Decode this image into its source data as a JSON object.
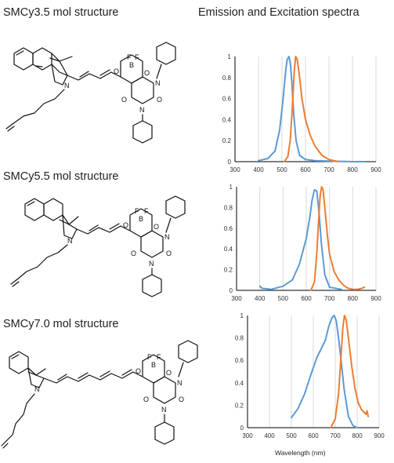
{
  "titles": {
    "structure_1": "SMCy3.5 mol structure",
    "structure_2": "SMCy5.5 mol structure",
    "structure_3": "SMCy7.0 mol structure",
    "spectra": "Emission and Excitation spectra"
  },
  "atoms": {
    "boron": "B",
    "fluorine": "F",
    "oxygen": "O",
    "nitrogen": "N"
  },
  "colors": {
    "excitation": "#5b9bd5",
    "emission": "#ed7d31",
    "grid": "#d9d9d9",
    "axis": "#000000"
  },
  "chart_data": [
    {
      "type": "line",
      "title": "",
      "xlabel": "",
      "ylabel": "",
      "xlim": [
        300,
        900
      ],
      "ylim": [
        0,
        1
      ],
      "xticks": [
        300,
        400,
        500,
        600,
        700,
        800,
        900
      ],
      "yticks": [
        0,
        0.2,
        0.4,
        0.6,
        0.8,
        1
      ],
      "grid": "vertical",
      "series": [
        {
          "color": "#5b9bd5",
          "x": [
            400,
            440,
            470,
            490,
            505,
            515,
            522,
            530,
            536,
            542,
            550,
            560,
            575,
            600,
            640,
            700,
            800,
            850
          ],
          "y": [
            0.01,
            0.03,
            0.1,
            0.3,
            0.6,
            0.85,
            0.97,
            1.0,
            0.93,
            0.75,
            0.45,
            0.2,
            0.06,
            0.02,
            0.01,
            0.005,
            0.0,
            0.0
          ]
        },
        {
          "color": "#ed7d31",
          "x": [
            510,
            525,
            535,
            545,
            552,
            558,
            565,
            575,
            585,
            600,
            620,
            640,
            670,
            700,
            720,
            740
          ],
          "y": [
            0.0,
            0.05,
            0.2,
            0.55,
            0.85,
            1.0,
            0.97,
            0.8,
            0.6,
            0.4,
            0.25,
            0.15,
            0.06,
            0.02,
            0.01,
            0.0
          ]
        }
      ]
    },
    {
      "type": "line",
      "title": "",
      "xlabel": "",
      "ylabel": "",
      "xlim": [
        300,
        900
      ],
      "ylim": [
        0,
        1
      ],
      "xticks": [
        300,
        400,
        500,
        600,
        700,
        800,
        900
      ],
      "yticks": [
        0,
        0.2,
        0.4,
        0.6,
        0.8,
        1
      ],
      "grid": "vertical",
      "series": [
        {
          "color": "#5b9bd5",
          "x": [
            400,
            410,
            450,
            500,
            540,
            570,
            600,
            615,
            625,
            635,
            645,
            655,
            665,
            680,
            700,
            750
          ],
          "y": [
            0.04,
            0.02,
            0.01,
            0.04,
            0.1,
            0.25,
            0.5,
            0.7,
            0.87,
            0.97,
            0.96,
            0.75,
            0.45,
            0.15,
            0.03,
            0.01
          ]
        },
        {
          "color": "#ed7d31",
          "x": [
            620,
            635,
            645,
            655,
            660,
            666,
            672,
            680,
            690,
            700,
            720,
            740,
            760,
            780,
            800,
            820,
            840,
            850
          ],
          "y": [
            0.0,
            0.08,
            0.35,
            0.75,
            0.92,
            1.0,
            0.97,
            0.8,
            0.55,
            0.35,
            0.18,
            0.1,
            0.05,
            0.02,
            0.01,
            0.01,
            0.02,
            0.03
          ]
        }
      ]
    },
    {
      "type": "line",
      "title": "",
      "xlabel": "Wavelength (nm)",
      "ylabel": "",
      "xlim": [
        300,
        900
      ],
      "ylim": [
        0,
        1
      ],
      "xticks": [
        300,
        400,
        500,
        600,
        700,
        800,
        900
      ],
      "yticks": [
        0,
        0.2,
        0.4,
        0.6,
        0.8,
        1
      ],
      "grid": "vertical",
      "series": [
        {
          "color": "#5b9bd5",
          "x": [
            500,
            530,
            560,
            590,
            615,
            635,
            655,
            670,
            685,
            695,
            705,
            720,
            740,
            760,
            780,
            800
          ],
          "y": [
            0.09,
            0.17,
            0.3,
            0.48,
            0.62,
            0.7,
            0.78,
            0.9,
            0.98,
            1.0,
            0.95,
            0.72,
            0.35,
            0.1,
            0.02,
            0.0
          ]
        },
        {
          "color": "#ed7d31",
          "x": [
            680,
            700,
            715,
            725,
            735,
            742,
            750,
            760,
            775,
            790,
            805,
            820,
            830,
            840,
            845,
            850
          ],
          "y": [
            0.0,
            0.08,
            0.3,
            0.6,
            0.9,
            1.0,
            0.96,
            0.8,
            0.55,
            0.35,
            0.22,
            0.16,
            0.14,
            0.12,
            0.15,
            0.1
          ]
        }
      ]
    }
  ]
}
